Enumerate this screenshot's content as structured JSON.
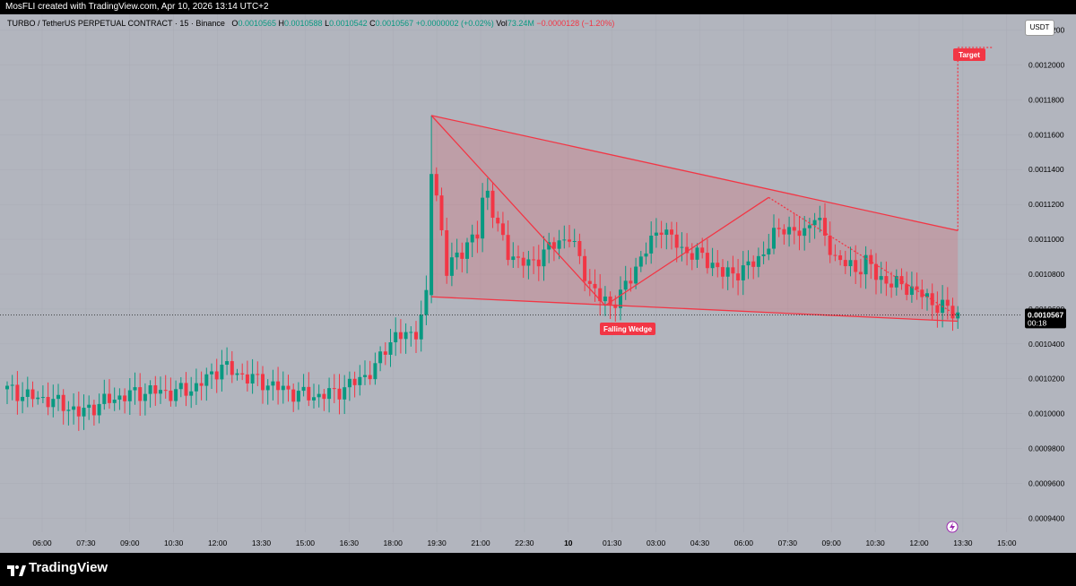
{
  "topbar": {
    "credit": "MosFLI created with TradingView.com, Apr 10, 2026 13:14 UTC+2"
  },
  "legend": {
    "symbol": "TURBO / TetherUS PERPETUAL CONTRACT · 15 · Binance",
    "o_label": "O",
    "o": "0.0010565",
    "h_label": "H",
    "h": "0.0010588",
    "l_label": "L",
    "l": "0.0010542",
    "c_label": "C",
    "c": "0.0010567",
    "change": "+0.0000002 (+0.02%)",
    "vol_label": "Vol",
    "vol": "73.24M",
    "change2": "−0.0000128 (−1.20%)"
  },
  "unit": "USDT",
  "price_tag": {
    "price": "0.0010567",
    "timer": "00:18"
  },
  "annotations": {
    "pattern": "Falling Wedge",
    "target": "Target"
  },
  "brand": {
    "name": "TradingView"
  },
  "colors": {
    "up": "#089981",
    "down": "#f23645",
    "background": "#b2b5be",
    "pattern": "#f23645"
  },
  "chart_data": {
    "type": "candlestick",
    "timeframe": "15",
    "x_ticks": [
      "06:00",
      "07:30",
      "09:00",
      "10:30",
      "12:00",
      "13:30",
      "15:00",
      "16:30",
      "18:00",
      "19:30",
      "21:00",
      "22:30",
      "10",
      "01:30",
      "03:00",
      "04:30",
      "06:00",
      "07:30",
      "09:00",
      "10:30",
      "12:00",
      "13:30",
      "15:00"
    ],
    "y_ticks": [
      0.00094,
      0.00096,
      0.00098,
      0.001,
      0.00102,
      0.00104,
      0.00106,
      0.00108,
      0.0011,
      0.00112,
      0.00114,
      0.00116,
      0.00118,
      0.0012,
      0.00122
    ],
    "ylim": [
      0.000932,
      0.001229
    ],
    "last_price": 0.0010567,
    "close_path": [
      [
        0,
        0.001014
      ],
      [
        4,
        0.00101
      ],
      [
        8,
        0.001008
      ],
      [
        12,
        0.001004
      ],
      [
        14,
        0.001
      ],
      [
        16,
        0.001003
      ],
      [
        20,
        0.001008
      ],
      [
        24,
        0.001011
      ],
      [
        28,
        0.001013
      ],
      [
        32,
        0.001012
      ],
      [
        36,
        0.001014
      ],
      [
        40,
        0.001022
      ],
      [
        42,
        0.001028
      ],
      [
        44,
        0.001024
      ],
      [
        48,
        0.00102
      ],
      [
        52,
        0.001016
      ],
      [
        56,
        0.001012
      ],
      [
        60,
        0.00101
      ],
      [
        64,
        0.001012
      ],
      [
        68,
        0.001018
      ],
      [
        72,
        0.001026
      ],
      [
        74,
        0.001038
      ],
      [
        76,
        0.001045
      ],
      [
        78,
        0.001044
      ],
      [
        80,
        0.001048
      ],
      [
        81,
        0.001055
      ],
      [
        82,
        0.001067
      ],
      [
        83,
        0.00114
      ],
      [
        84,
        0.001125
      ],
      [
        85,
        0.001105
      ],
      [
        86,
        0.001082
      ],
      [
        88,
        0.00109
      ],
      [
        90,
        0.001098
      ],
      [
        92,
        0.001102
      ],
      [
        93,
        0.001122
      ],
      [
        94,
        0.001128
      ],
      [
        96,
        0.001106
      ],
      [
        98,
        0.001092
      ],
      [
        102,
        0.001085
      ],
      [
        106,
        0.001095
      ],
      [
        110,
        0.001102
      ],
      [
        112,
        0.001088
      ],
      [
        114,
        0.001074
      ],
      [
        116,
        0.001066
      ],
      [
        118,
        0.001063
      ],
      [
        120,
        0.001068
      ],
      [
        122,
        0.001078
      ],
      [
        124,
        0.00109
      ],
      [
        126,
        0.001098
      ],
      [
        128,
        0.001108
      ],
      [
        130,
        0.0011
      ],
      [
        132,
        0.001094
      ],
      [
        136,
        0.00109
      ],
      [
        138,
        0.001086
      ],
      [
        140,
        0.00108
      ],
      [
        144,
        0.001082
      ],
      [
        146,
        0.001087
      ],
      [
        148,
        0.001092
      ],
      [
        150,
        0.001102
      ],
      [
        152,
        0.001108
      ],
      [
        154,
        0.001103
      ],
      [
        156,
        0.001104
      ],
      [
        158,
        0.001115
      ],
      [
        159,
        0.001108
      ],
      [
        160,
        0.0011
      ],
      [
        162,
        0.00109
      ],
      [
        164,
        0.001086
      ],
      [
        166,
        0.001082
      ],
      [
        168,
        0.001088
      ],
      [
        170,
        0.001079
      ],
      [
        172,
        0.001076
      ],
      [
        174,
        0.001074
      ],
      [
        176,
        0.001073
      ],
      [
        178,
        0.00107
      ],
      [
        180,
        0.001066
      ],
      [
        182,
        0.001062
      ],
      [
        184,
        0.00106
      ],
      [
        185,
        0.001058
      ],
      [
        186,
        0.001057
      ]
    ],
    "pattern_lines": [
      {
        "name": "wedge upper",
        "from": [
          83,
          0.001171
        ],
        "to": [
          186,
          0.001105
        ]
      },
      {
        "name": "wedge lower",
        "from": [
          83,
          0.001067
        ],
        "to": [
          186,
          0.001053
        ]
      },
      {
        "name": "zigzag",
        "points": [
          [
            83,
            0.001171
          ],
          [
            117,
            0.001062
          ],
          [
            149,
            0.001124
          ],
          [
            186,
            0.001056
          ]
        ]
      },
      {
        "name": "target",
        "from": [
          186,
          0.001105
        ],
        "to": [
          186,
          0.00121
        ]
      }
    ]
  }
}
